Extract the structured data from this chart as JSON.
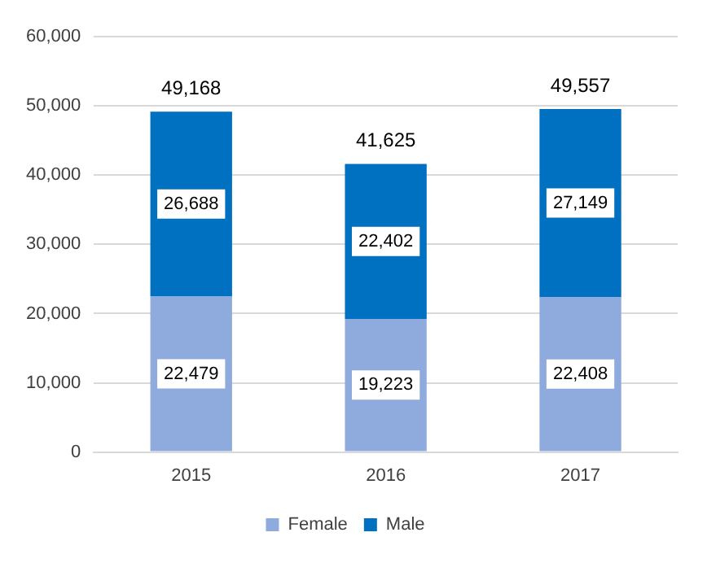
{
  "chart_data": {
    "type": "bar",
    "stacked": true,
    "categories": [
      "2015",
      "2016",
      "2017"
    ],
    "series": [
      {
        "name": "Female",
        "color": "#8faadc",
        "values": [
          22479,
          19223,
          22408
        ],
        "value_labels": [
          "22,479",
          "19,223",
          "22,408"
        ]
      },
      {
        "name": "Male",
        "color": "#0070c0",
        "values": [
          26688,
          22402,
          27149
        ],
        "value_labels": [
          "26,688",
          "22,402",
          "27,149"
        ]
      }
    ],
    "totals": [
      "49,168",
      "41,625",
      "49,557"
    ],
    "ylim": [
      0,
      60000
    ],
    "yticks": [
      {
        "value": 0,
        "label": "0"
      },
      {
        "value": 10000,
        "label": "10,000"
      },
      {
        "value": 20000,
        "label": "20,000"
      },
      {
        "value": 30000,
        "label": "30,000"
      },
      {
        "value": 40000,
        "label": "40,000"
      },
      {
        "value": 50000,
        "label": "50,000"
      },
      {
        "value": 60000,
        "label": "60,000"
      }
    ],
    "grid": "y",
    "legend": "bottom"
  }
}
